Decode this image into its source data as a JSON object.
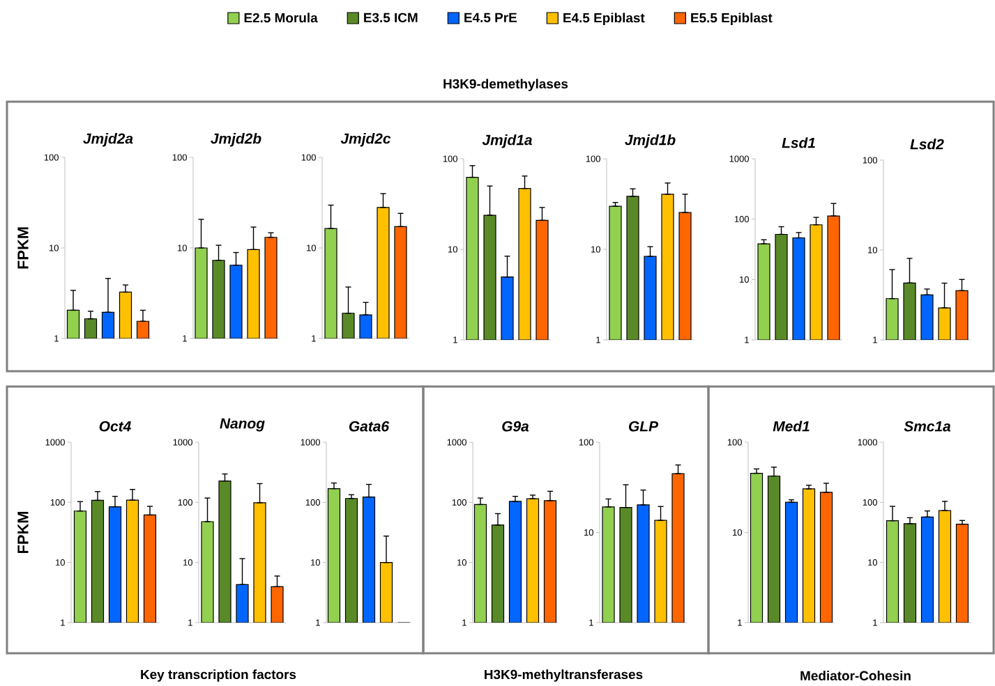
{
  "chart_data": [
    {
      "type": "bar",
      "title": "Jmjd2a",
      "ylabel": "FPKM",
      "categories": [
        null
      ],
      "log": "y",
      "ylim": [
        1,
        100
      ],
      "yticks": [
        1,
        10,
        100
      ],
      "legend": "top",
      "annotations": [
        "H3K9-demethylases"
      ],
      "series": [
        {
          "name": "E2.5 Morula",
          "color": "#92d050",
          "values": [
            2.05
          ],
          "errors": [
            [
              2.05,
              3.4
            ]
          ]
        },
        {
          "name": "E3.5 ICM",
          "color": "#5a8a28",
          "values": [
            1.65
          ],
          "errors": [
            [
              1.65,
              2.0
            ]
          ]
        },
        {
          "name": "E4.5 PrE",
          "color": "#0066ff",
          "values": [
            1.95
          ],
          "errors": [
            [
              1.95,
              4.6
            ]
          ]
        },
        {
          "name": "E4.5 Epiblast",
          "color": "#ffc000",
          "values": [
            3.25
          ],
          "errors": [
            [
              3.25,
              3.9
            ]
          ]
        },
        {
          "name": "E5.5 Epiblast",
          "color": "#ff6600",
          "values": [
            1.55
          ],
          "errors": [
            [
              1.55,
              2.05
            ]
          ]
        }
      ]
    },
    {
      "type": "bar",
      "title": "Jmjd2b",
      "categories": [
        null
      ],
      "log": "y",
      "ylim": [
        1,
        100
      ],
      "yticks": [
        1,
        10,
        100
      ],
      "series": [
        {
          "color": "#92d050",
          "values": [
            10
          ],
          "errors": [
            [
              10,
              20.7
            ]
          ]
        },
        {
          "color": "#5a8a28",
          "values": [
            7.3
          ],
          "errors": [
            [
              7.3,
              10.7
            ]
          ]
        },
        {
          "color": "#0066ff",
          "values": [
            6.45
          ],
          "errors": [
            [
              6.45,
              8.9
            ]
          ]
        },
        {
          "color": "#ffc000",
          "values": [
            9.6
          ],
          "errors": [
            [
              9.6,
              17
            ]
          ]
        },
        {
          "color": "#ff6600",
          "values": [
            13.1
          ],
          "errors": [
            [
              13.1,
              14.7
            ]
          ]
        }
      ]
    },
    {
      "type": "bar",
      "title": "Jmjd2c",
      "categories": [
        null
      ],
      "log": "y",
      "ylim": [
        1,
        100
      ],
      "yticks": [
        1,
        10,
        100
      ],
      "series": [
        {
          "color": "#92d050",
          "values": [
            16.4
          ],
          "errors": [
            [
              16.4,
              29.7
            ]
          ]
        },
        {
          "color": "#5a8a28",
          "values": [
            1.9
          ],
          "errors": [
            [
              1.9,
              3.7
            ]
          ]
        },
        {
          "color": "#0066ff",
          "values": [
            1.82
          ],
          "errors": [
            [
              1.82,
              2.5
            ]
          ]
        },
        {
          "color": "#ffc000",
          "values": [
            28
          ],
          "errors": [
            [
              28,
              39.8
            ]
          ]
        },
        {
          "color": "#ff6600",
          "values": [
            17.2
          ],
          "errors": [
            [
              17.2,
              24.1
            ]
          ]
        }
      ]
    },
    {
      "type": "bar",
      "title": "Jmjd1a",
      "categories": [
        null
      ],
      "log": "y",
      "ylim": [
        1,
        100
      ],
      "yticks": [
        1,
        10,
        100
      ],
      "series": [
        {
          "color": "#92d050",
          "values": [
            62.5
          ],
          "errors": [
            [
              62.5,
              84
            ]
          ]
        },
        {
          "color": "#5a8a28",
          "values": [
            23.8
          ],
          "errors": [
            [
              23.8,
              50
            ]
          ]
        },
        {
          "color": "#0066ff",
          "values": [
            4.95
          ],
          "errors": [
            [
              4.95,
              8.4
            ]
          ]
        },
        {
          "color": "#ffc000",
          "values": [
            47
          ],
          "errors": [
            [
              47,
              64.5
            ]
          ]
        },
        {
          "color": "#ff6600",
          "values": [
            20.9
          ],
          "errors": [
            [
              20.9,
              29
            ]
          ]
        }
      ]
    },
    {
      "type": "bar",
      "title": "Jmjd1b",
      "categories": [
        null
      ],
      "log": "y",
      "ylim": [
        1,
        100
      ],
      "yticks": [
        1,
        10,
        100
      ],
      "series": [
        {
          "color": "#92d050",
          "values": [
            29.9
          ],
          "errors": [
            [
              29.9,
              32.9
            ]
          ]
        },
        {
          "color": "#5a8a28",
          "values": [
            38.5
          ],
          "errors": [
            [
              38.5,
              46.6
            ]
          ]
        },
        {
          "color": "#0066ff",
          "values": [
            8.35
          ],
          "errors": [
            [
              8.35,
              10.7
            ]
          ]
        },
        {
          "color": "#ffc000",
          "values": [
            40.6
          ],
          "errors": [
            [
              40.6,
              54
            ]
          ]
        },
        {
          "color": "#ff6600",
          "values": [
            25.5
          ],
          "errors": [
            [
              25.5,
              40.6
            ]
          ]
        }
      ]
    },
    {
      "type": "bar",
      "title": "Lsd1",
      "categories": [
        null
      ],
      "log": "y",
      "ylim": [
        1,
        1000
      ],
      "yticks": [
        1,
        10,
        100,
        1000
      ],
      "series": [
        {
          "color": "#92d050",
          "values": [
            39
          ],
          "errors": [
            [
              39,
              45.6
            ]
          ]
        },
        {
          "color": "#5a8a28",
          "values": [
            56
          ],
          "errors": [
            [
              56,
              75
            ]
          ]
        },
        {
          "color": "#0066ff",
          "values": [
            49
          ],
          "errors": [
            [
              49,
              60
            ]
          ]
        },
        {
          "color": "#ffc000",
          "values": [
            80.7
          ],
          "errors": [
            [
              80.7,
              107
            ]
          ]
        },
        {
          "color": "#ff6600",
          "values": [
            113
          ],
          "errors": [
            [
              113,
              182
            ]
          ]
        }
      ]
    },
    {
      "type": "bar",
      "title": "Lsd2",
      "categories": [
        null
      ],
      "log": "y",
      "ylim": [
        1,
        100
      ],
      "yticks": [
        1,
        10,
        100
      ],
      "series": [
        {
          "color": "#92d050",
          "values": [
            2.88
          ],
          "errors": [
            [
              2.88,
              6.05
            ]
          ]
        },
        {
          "color": "#5a8a28",
          "values": [
            4.3
          ],
          "errors": [
            [
              4.3,
              8.07
            ]
          ]
        },
        {
          "color": "#0066ff",
          "values": [
            3.17
          ],
          "errors": [
            [
              3.17,
              3.68
            ]
          ]
        },
        {
          "color": "#ffc000",
          "values": [
            2.27
          ],
          "errors": [
            [
              2.27,
              4.28
            ]
          ]
        },
        {
          "color": "#ff6600",
          "values": [
            3.53
          ],
          "errors": [
            [
              3.53,
              4.7
            ]
          ]
        }
      ]
    },
    {
      "type": "bar",
      "title": "Oct4",
      "ylabel": "FPKM",
      "categories": [
        null
      ],
      "log": "y",
      "ylim": [
        1,
        1000
      ],
      "yticks": [
        1,
        10,
        100,
        1000
      ],
      "annotations": [
        "Key transcription factors"
      ],
      "series": [
        {
          "color": "#92d050",
          "values": [
            71.8
          ],
          "errors": [
            [
              71.8,
              103
            ]
          ]
        },
        {
          "color": "#5a8a28",
          "values": [
            108
          ],
          "errors": [
            [
              108,
              151
            ]
          ]
        },
        {
          "color": "#0066ff",
          "values": [
            84.6
          ],
          "errors": [
            [
              84.6,
              126
            ]
          ]
        },
        {
          "color": "#ffc000",
          "values": [
            109
          ],
          "errors": [
            [
              109,
              164
            ]
          ]
        },
        {
          "color": "#ff6600",
          "values": [
            61.7
          ],
          "errors": [
            [
              61.7,
              86
            ]
          ]
        }
      ]
    },
    {
      "type": "bar",
      "title": "Nanog",
      "categories": [
        null
      ],
      "log": "y",
      "ylim": [
        1,
        1000
      ],
      "yticks": [
        1,
        10,
        100,
        1000
      ],
      "series": [
        {
          "color": "#92d050",
          "values": [
            47.8
          ],
          "errors": [
            [
              47.8,
              118
            ]
          ]
        },
        {
          "color": "#5a8a28",
          "values": [
            227
          ],
          "errors": [
            [
              227,
              297
            ]
          ]
        },
        {
          "color": "#0066ff",
          "values": [
            4.3
          ],
          "errors": [
            [
              4.3,
              11.6
            ]
          ]
        },
        {
          "color": "#ffc000",
          "values": [
            98.6
          ],
          "errors": [
            [
              98.6,
              205
            ]
          ]
        },
        {
          "color": "#ff6600",
          "values": [
            3.96
          ],
          "errors": [
            [
              3.96,
              5.96
            ]
          ]
        }
      ]
    },
    {
      "type": "bar",
      "title": "Gata6",
      "categories": [
        null
      ],
      "log": "y",
      "ylim": [
        1,
        1000
      ],
      "yticks": [
        1,
        10,
        100,
        1000
      ],
      "series": [
        {
          "color": "#92d050",
          "values": [
            169
          ],
          "errors": [
            [
              169,
              210
            ]
          ]
        },
        {
          "color": "#5a8a28",
          "values": [
            116
          ],
          "errors": [
            [
              116,
              134
            ]
          ]
        },
        {
          "color": "#0066ff",
          "values": [
            123
          ],
          "errors": [
            [
              123,
              199
            ]
          ]
        },
        {
          "color": "#ffc000",
          "values": [
            10
          ],
          "errors": [
            [
              10,
              27.5
            ]
          ]
        },
        {
          "color": "#ff6600",
          "values": [
            1
          ],
          "errors": [
            null
          ]
        }
      ]
    },
    {
      "type": "bar",
      "title": "G9a",
      "categories": [
        null
      ],
      "log": "y",
      "ylim": [
        1,
        1000
      ],
      "yticks": [
        1,
        10,
        100,
        1000
      ],
      "annotations": [
        "H3K9-methyltransferases"
      ],
      "series": [
        {
          "color": "#92d050",
          "values": [
            92
          ],
          "errors": [
            [
              92,
              118
            ]
          ]
        },
        {
          "color": "#5a8a28",
          "values": [
            42
          ],
          "errors": [
            [
              42,
              65
            ]
          ]
        },
        {
          "color": "#0066ff",
          "values": [
            104
          ],
          "errors": [
            [
              104,
              126
            ]
          ]
        },
        {
          "color": "#ffc000",
          "values": [
            115
          ],
          "errors": [
            [
              115,
              132
            ]
          ]
        },
        {
          "color": "#ff6600",
          "values": [
            107
          ],
          "errors": [
            [
              107,
              153
            ]
          ]
        }
      ]
    },
    {
      "type": "bar",
      "title": "GLP",
      "categories": [
        null
      ],
      "log": "y",
      "ylim": [
        1,
        100
      ],
      "yticks": [
        1,
        10,
        100
      ],
      "series": [
        {
          "color": "#92d050",
          "values": [
            19.2
          ],
          "errors": [
            [
              19.2,
              23.5
            ]
          ]
        },
        {
          "color": "#5a8a28",
          "values": [
            18.9
          ],
          "errors": [
            [
              18.9,
              33.8
            ]
          ]
        },
        {
          "color": "#0066ff",
          "values": [
            20.2
          ],
          "errors": [
            [
              20.2,
              29.5
            ]
          ]
        },
        {
          "color": "#ffc000",
          "values": [
            13.6
          ],
          "errors": [
            [
              13.6,
              19.4
            ]
          ]
        },
        {
          "color": "#ff6600",
          "values": [
            44.9
          ],
          "errors": [
            [
              44.9,
              56
            ]
          ]
        }
      ]
    },
    {
      "type": "bar",
      "title": "Med1",
      "categories": [
        null
      ],
      "log": "y",
      "ylim": [
        1,
        100
      ],
      "yticks": [
        1,
        10,
        100
      ],
      "annotations": [
        "Mediator-Cohesin"
      ],
      "series": [
        {
          "color": "#92d050",
          "values": [
            45.3
          ],
          "errors": [
            [
              45.3,
              50.6
            ]
          ]
        },
        {
          "color": "#5a8a28",
          "values": [
            42.2
          ],
          "errors": [
            [
              42.2,
              53
            ]
          ]
        },
        {
          "color": "#0066ff",
          "values": [
            21.6
          ],
          "errors": [
            [
              21.6,
              23
            ]
          ]
        },
        {
          "color": "#ffc000",
          "values": [
            30.4
          ],
          "errors": [
            [
              30.4,
              33.4
            ]
          ]
        },
        {
          "color": "#ff6600",
          "values": [
            27.9
          ],
          "errors": [
            [
              27.9,
              35.1
            ]
          ]
        }
      ]
    },
    {
      "type": "bar",
      "title": "Smc1a",
      "categories": [
        null
      ],
      "log": "y",
      "ylim": [
        1,
        1000
      ],
      "yticks": [
        1,
        10,
        100,
        1000
      ],
      "series": [
        {
          "color": "#92d050",
          "values": [
            49.5
          ],
          "errors": [
            [
              49.5,
              86
            ]
          ]
        },
        {
          "color": "#5a8a28",
          "values": [
            44.2
          ],
          "errors": [
            [
              44.2,
              55.6
            ]
          ]
        },
        {
          "color": "#0066ff",
          "values": [
            57.2
          ],
          "errors": [
            [
              57.2,
              72
            ]
          ]
        },
        {
          "color": "#ffc000",
          "values": [
            73
          ],
          "errors": [
            [
              73,
              104
            ]
          ]
        },
        {
          "color": "#ff6600",
          "values": [
            43.4
          ],
          "errors": [
            [
              43.4,
              50
            ]
          ]
        }
      ]
    }
  ]
}
